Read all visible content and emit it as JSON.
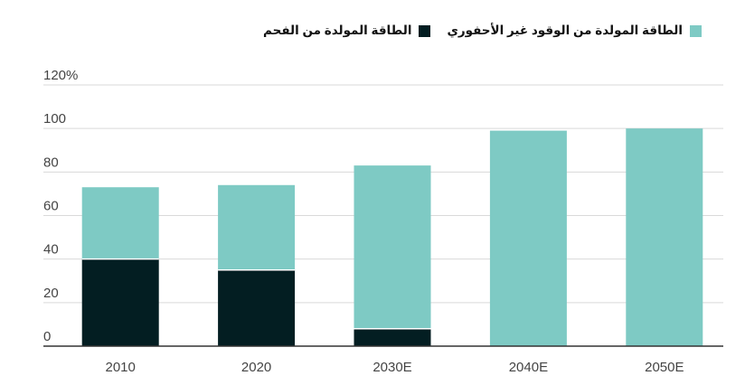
{
  "legend": {
    "items": [
      {
        "label": "الطاقة المولدة من الوقود غير الأحفوري",
        "color": "#7ecac4"
      },
      {
        "label": "الطاقة المولدة من الفحم",
        "color": "#031e22"
      }
    ]
  },
  "chart_data": {
    "type": "bar",
    "stacked": true,
    "categories": [
      "2010",
      "2020",
      "2030E",
      "2040E",
      "2050E"
    ],
    "series": [
      {
        "name": "الطاقة المولدة من الفحم",
        "color": "#031e22",
        "values": [
          40,
          35,
          8,
          0,
          0
        ]
      },
      {
        "name": "الطاقة المولدة من الوقود غير الأحفوري",
        "color": "#7ecac4",
        "values": [
          33,
          39,
          75,
          99,
          100
        ]
      }
    ],
    "ylim": [
      0,
      120
    ],
    "yticks": [
      "0",
      "20",
      "40",
      "60",
      "80",
      "100",
      "120%"
    ],
    "grid": true,
    "legend_position": "top-right"
  }
}
